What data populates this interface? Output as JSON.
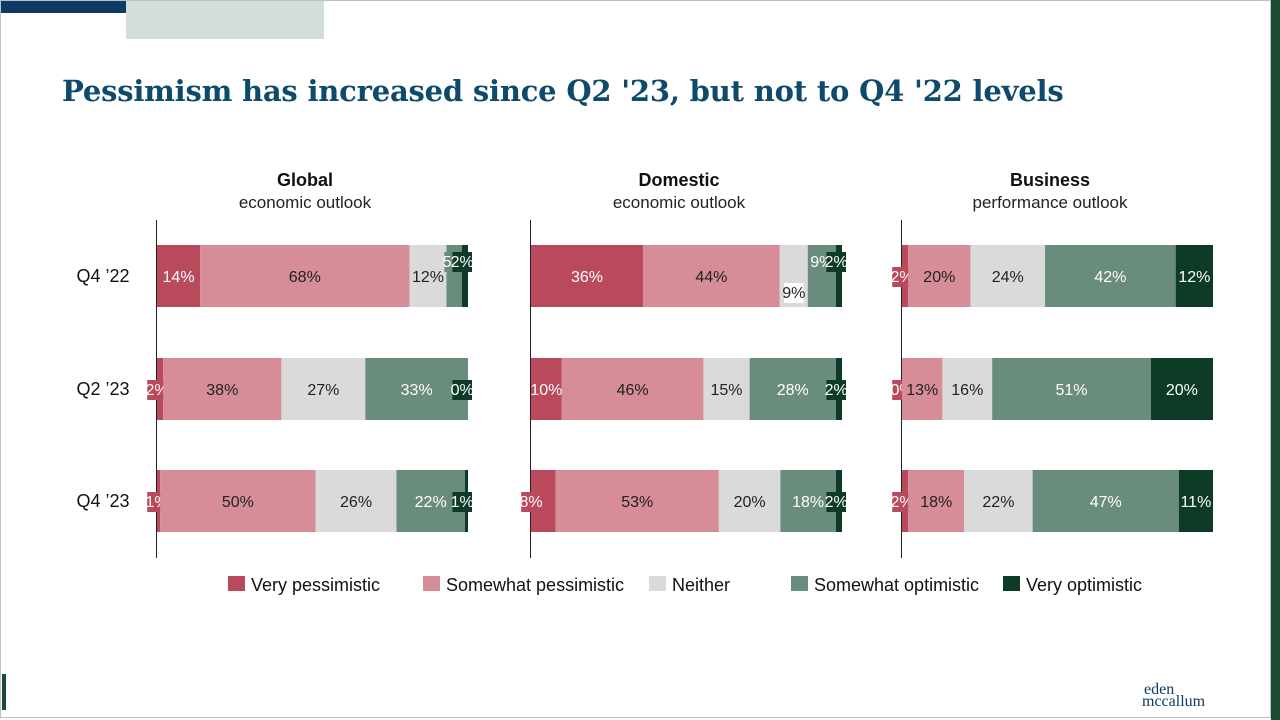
{
  "title": "Pessimism has increased since Q2 '23, but not to Q4 '22 levels",
  "logo": {
    "line1": "eden",
    "line2": "mccallum"
  },
  "colors": {
    "very_pessimistic": "#b94a5c",
    "somewhat_pessimistic": "#d68d97",
    "neither": "#dadada",
    "somewhat_optimistic": "#6a8c7c",
    "very_optimistic": "#0e3b26",
    "title": "#0d4a6b"
  },
  "chart_data": {
    "type": "bar",
    "orientation": "horizontal",
    "stacked": true,
    "categories": [
      "Q4 ’22",
      "Q2 ’23",
      "Q4 ’23"
    ],
    "legend": [
      "Very pessimistic",
      "Somewhat pessimistic",
      "Neither",
      "Somewhat optimistic",
      "Very optimistic"
    ],
    "legend_position": "bottom",
    "xlim": [
      0,
      100
    ],
    "grid": false,
    "panels": [
      {
        "title": "Global",
        "subtitle": "economic outlook",
        "series": [
          {
            "name": "Very pessimistic",
            "values": [
              14,
              2,
              1
            ]
          },
          {
            "name": "Somewhat pessimistic",
            "values": [
              68,
              38,
              50
            ]
          },
          {
            "name": "Neither",
            "values": [
              12,
              27,
              26
            ]
          },
          {
            "name": "Somewhat optimistic",
            "values": [
              5,
              33,
              22
            ]
          },
          {
            "name": "Very optimistic",
            "values": [
              2,
              0,
              1
            ]
          }
        ]
      },
      {
        "title": "Domestic",
        "subtitle": "economic outlook",
        "series": [
          {
            "name": "Very pessimistic",
            "values": [
              36,
              10,
              8
            ]
          },
          {
            "name": "Somewhat pessimistic",
            "values": [
              44,
              46,
              53
            ]
          },
          {
            "name": "Neither",
            "values": [
              9,
              15,
              20
            ]
          },
          {
            "name": "Somewhat optimistic",
            "values": [
              9,
              28,
              18
            ]
          },
          {
            "name": "Very optimistic",
            "values": [
              2,
              2,
              2
            ]
          }
        ]
      },
      {
        "title": "Business",
        "subtitle": "performance outlook",
        "series": [
          {
            "name": "Very pessimistic",
            "values": [
              2,
              0,
              2
            ]
          },
          {
            "name": "Somewhat pessimistic",
            "values": [
              20,
              13,
              18
            ]
          },
          {
            "name": "Neither",
            "values": [
              24,
              16,
              22
            ]
          },
          {
            "name": "Somewhat optimistic",
            "values": [
              42,
              51,
              47
            ]
          },
          {
            "name": "Very optimistic",
            "values": [
              12,
              20,
              11
            ]
          }
        ]
      }
    ]
  }
}
